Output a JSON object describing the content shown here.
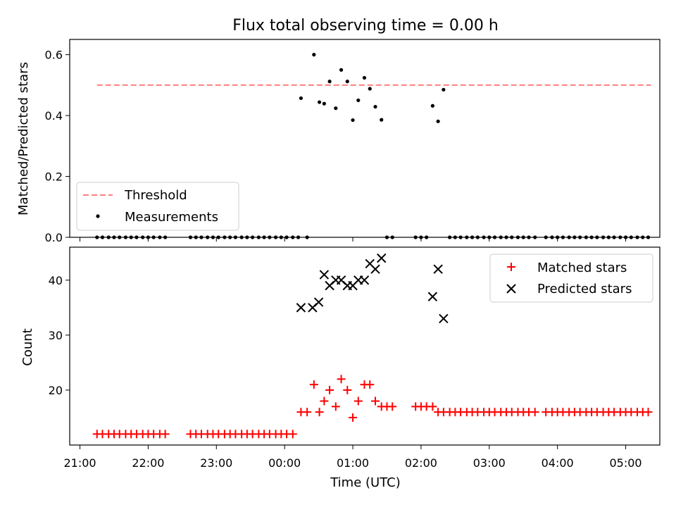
{
  "title": "Flux total observing time = 0.00 h",
  "colors": {
    "threshold": "#ff7f7f",
    "measurements": "#000000",
    "matched": "#ff0000",
    "predicted": "#000000"
  },
  "x_axis": {
    "label": "Time (UTC)",
    "ticks": [
      {
        "hour": 21,
        "label": "21:00"
      },
      {
        "hour": 22,
        "label": "22:00"
      },
      {
        "hour": 23,
        "label": "23:00"
      },
      {
        "hour": 24,
        "label": "00:00"
      },
      {
        "hour": 25,
        "label": "01:00"
      },
      {
        "hour": 26,
        "label": "02:00"
      },
      {
        "hour": 27,
        "label": "03:00"
      },
      {
        "hour": 28,
        "label": "04:00"
      },
      {
        "hour": 29,
        "label": "05:00"
      }
    ],
    "xlim": [
      20.85,
      29.5
    ]
  },
  "chart_data": [
    {
      "type": "scatter",
      "panel": "top",
      "ylabel": "Matched/Predicted stars",
      "ylim": [
        0,
        0.65
      ],
      "yticks": [
        "0.0",
        "0.2",
        "0.4",
        "0.6"
      ],
      "ytick_values": [
        0,
        0.2,
        0.4,
        0.6
      ],
      "legend": {
        "position": "lower-left",
        "entries": [
          "Threshold",
          "Measurements"
        ]
      },
      "threshold": {
        "name": "Threshold",
        "value": 0.5,
        "x_start": 21.25,
        "x_end": 29.37
      },
      "measurements": {
        "name": "Measurements",
        "x": [
          21.25,
          21.33,
          21.42,
          21.5,
          21.58,
          21.67,
          21.75,
          21.83,
          21.92,
          22.0,
          22.08,
          22.17,
          22.25,
          22.62,
          22.7,
          22.78,
          22.87,
          22.95,
          23.03,
          23.12,
          23.2,
          23.28,
          23.37,
          23.45,
          23.53,
          23.62,
          23.7,
          23.78,
          23.87,
          23.95,
          24.03,
          24.12,
          24.2,
          24.33,
          24.24,
          24.43,
          24.51,
          24.58,
          24.66,
          24.75,
          24.83,
          24.92,
          25.0,
          25.08,
          25.17,
          25.25,
          25.33,
          25.42,
          25.5,
          25.58,
          25.92,
          26.0,
          26.08,
          26.17,
          26.25,
          26.33,
          26.42,
          26.5,
          26.58,
          26.67,
          26.75,
          26.83,
          26.92,
          27.0,
          27.08,
          27.17,
          27.25,
          27.33,
          27.42,
          27.5,
          27.58,
          27.67,
          27.83,
          27.92,
          28.0,
          28.08,
          28.17,
          28.25,
          28.33,
          28.42,
          28.5,
          28.58,
          28.67,
          28.75,
          28.83,
          28.92,
          29.0,
          29.08,
          29.17,
          29.25,
          29.33
        ],
        "y": [
          0,
          0,
          0,
          0,
          0,
          0,
          0,
          0,
          0,
          0,
          0,
          0,
          0,
          0,
          0,
          0,
          0,
          0,
          0,
          0,
          0,
          0,
          0,
          0,
          0,
          0,
          0,
          0,
          0,
          0,
          0,
          0,
          0,
          0,
          0.457,
          0.6,
          0.444,
          0.439,
          0.512,
          0.424,
          0.55,
          0.512,
          0.385,
          0.45,
          0.524,
          0.488,
          0.429,
          0.386,
          0,
          0,
          0,
          0,
          0,
          0.432,
          0.381,
          0.485,
          0,
          0,
          0,
          0,
          0,
          0,
          0,
          0,
          0,
          0,
          0,
          0,
          0,
          0,
          0,
          0,
          0,
          0,
          0,
          0,
          0,
          0,
          0,
          0,
          0,
          0,
          0,
          0,
          0,
          0,
          0,
          0,
          0,
          0,
          0
        ]
      }
    },
    {
      "type": "scatter",
      "panel": "bottom",
      "ylabel": "Count",
      "xlabel": "Time (UTC)",
      "ylim": [
        10,
        46
      ],
      "yticks": [
        "20",
        "30",
        "40"
      ],
      "ytick_values": [
        20,
        30,
        40
      ],
      "legend": {
        "position": "upper-right",
        "entries": [
          "Matched stars",
          "Predicted stars"
        ]
      },
      "series": [
        {
          "name": "Matched stars",
          "marker": "+",
          "x": [
            21.25,
            21.33,
            21.42,
            21.5,
            21.58,
            21.67,
            21.75,
            21.83,
            21.92,
            22.0,
            22.08,
            22.17,
            22.25,
            22.62,
            22.7,
            22.78,
            22.87,
            22.95,
            23.03,
            23.12,
            23.2,
            23.28,
            23.37,
            23.45,
            23.53,
            23.62,
            23.7,
            23.78,
            23.87,
            23.95,
            24.03,
            24.12,
            24.24,
            24.33,
            24.43,
            24.51,
            24.58,
            24.66,
            24.75,
            24.83,
            24.92,
            25.0,
            25.08,
            25.17,
            25.25,
            25.33,
            25.42,
            25.5,
            25.58,
            25.92,
            26.0,
            26.08,
            26.17,
            26.25,
            26.33,
            26.42,
            26.5,
            26.58,
            26.67,
            26.75,
            26.83,
            26.92,
            27.0,
            27.08,
            27.17,
            27.25,
            27.33,
            27.42,
            27.5,
            27.58,
            27.67,
            27.83,
            27.92,
            28.0,
            28.08,
            28.17,
            28.25,
            28.33,
            28.42,
            28.5,
            28.58,
            28.67,
            28.75,
            28.83,
            28.92,
            29.0,
            29.08,
            29.17,
            29.25,
            29.33
          ],
          "y": [
            12,
            12,
            12,
            12,
            12,
            12,
            12,
            12,
            12,
            12,
            12,
            12,
            12,
            12,
            12,
            12,
            12,
            12,
            12,
            12,
            12,
            12,
            12,
            12,
            12,
            12,
            12,
            12,
            12,
            12,
            12,
            12,
            16,
            16,
            21,
            16,
            18,
            20,
            17,
            22,
            20,
            15,
            18,
            21,
            21,
            18,
            17,
            17,
            17,
            17,
            17,
            17,
            17,
            16,
            16,
            16,
            16,
            16,
            16,
            16,
            16,
            16,
            16,
            16,
            16,
            16,
            16,
            16,
            16,
            16,
            16,
            16,
            16,
            16,
            16,
            16,
            16,
            16,
            16,
            16,
            16,
            16,
            16,
            16,
            16,
            16,
            16,
            16,
            16,
            16
          ]
        },
        {
          "name": "Predicted stars",
          "marker": "x",
          "x": [
            24.24,
            24.41,
            24.5,
            24.58,
            24.66,
            24.75,
            24.83,
            24.92,
            25.0,
            25.08,
            25.17,
            25.25,
            25.33,
            25.42,
            26.17,
            26.25,
            26.33
          ],
          "y": [
            35,
            35,
            36,
            41,
            39,
            40,
            40,
            39,
            39,
            40,
            40,
            43,
            42,
            44,
            37,
            42,
            33
          ]
        }
      ]
    }
  ]
}
